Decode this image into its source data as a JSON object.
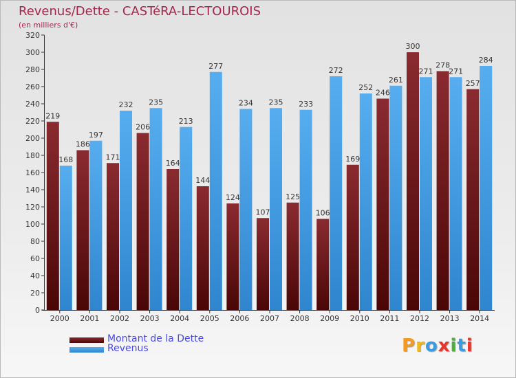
{
  "title": "Revenus/Dette - CASTéRA-LECTOUROIS",
  "subtitle": "(en milliers d'€)",
  "logo": "Proxiti",
  "colors": {
    "title": "#a5264a",
    "dette": "#7a1c22",
    "revenus": "#3e9ee6",
    "legend_text": "#4a4ae0"
  },
  "chart_data": {
    "type": "bar",
    "categories": [
      "2000",
      "2001",
      "2002",
      "2003",
      "2004",
      "2005",
      "2006",
      "2007",
      "2008",
      "2009",
      "2010",
      "2011",
      "2012",
      "2013",
      "2014"
    ],
    "series": [
      {
        "name": "Montant de la Dette",
        "values": [
          219,
          186,
          171,
          206,
          164,
          144,
          124,
          107,
          125,
          106,
          169,
          246,
          300,
          278,
          257
        ]
      },
      {
        "name": "Revenus",
        "values": [
          168,
          197,
          232,
          235,
          213,
          277,
          234,
          235,
          233,
          272,
          252,
          261,
          271,
          271,
          284
        ]
      }
    ],
    "ylim": [
      0,
      320
    ],
    "yticks": [
      0,
      20,
      40,
      60,
      80,
      100,
      120,
      140,
      160,
      180,
      200,
      220,
      240,
      260,
      280,
      300,
      320
    ],
    "grid": false,
    "legend_position": "bottom-left"
  }
}
